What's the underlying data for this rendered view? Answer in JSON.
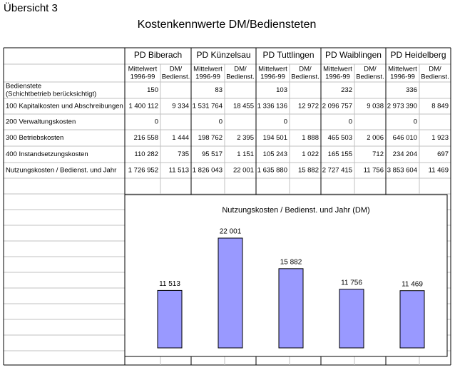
{
  "header": {
    "title": "Übersicht 3",
    "subtitle": "Kostenkennwerte DM/Bediensteten"
  },
  "table": {
    "columns": [
      "PD Biberach",
      "PD Künzelsau",
      "PD Tuttlingen",
      "PD Waiblingen",
      "PD Heidelberg"
    ],
    "subheaders": [
      [
        "Mittelwert",
        "1996-99"
      ],
      [
        "DM/",
        "Bedienst."
      ]
    ],
    "rows": [
      {
        "label": [
          "Bedienstete",
          "(Schichtbetrieb berücksichtigt)"
        ],
        "cells": [
          "150",
          null,
          "83",
          null,
          "103",
          null,
          "232",
          null,
          "336",
          null
        ]
      },
      {
        "label": [
          "100  Kapitalkosten und Abschreibungen"
        ],
        "cells": [
          "1 400 112",
          "9 334",
          "1 531 764",
          "18 455",
          "1 336 136",
          "12 972",
          "2 096 757",
          "9 038",
          "2 973 390",
          "8 849"
        ]
      },
      {
        "label": [
          "200  Verwaltungskosten"
        ],
        "cells": [
          "0",
          null,
          "0",
          null,
          "0",
          null,
          "0",
          null,
          "0",
          null
        ]
      },
      {
        "label": [
          "300  Betriebskosten"
        ],
        "cells": [
          "216 558",
          "1 444",
          "198 762",
          "2 395",
          "194 501",
          "1 888",
          "465 503",
          "2 006",
          "646 010",
          "1 923"
        ]
      },
      {
        "label": [
          "400  Instandsetzungskosten"
        ],
        "cells": [
          "110 282",
          "735",
          "95 517",
          "1 151",
          "105 243",
          "1 022",
          "165 155",
          "712",
          "234 204",
          "697"
        ]
      },
      {
        "label": [
          "Nutzungskosten / Bedienst. und Jahr"
        ],
        "cells": [
          "1 726 952",
          "11 513",
          "1 826 043",
          "22 001",
          "1 635 880",
          "15 882",
          "2 727 415",
          "11 756",
          "3 853 604",
          "11 469"
        ]
      }
    ]
  },
  "chart_data": {
    "type": "bar",
    "title": "Nutzungskosten / Bedienst. und Jahr (DM)",
    "categories": [
      null,
      null,
      null,
      null,
      null
    ],
    "values": [
      11513,
      22001,
      15882,
      11756,
      11469
    ],
    "value_labels": [
      "11 513",
      "22 001",
      "15 882",
      "11 756",
      "11 469"
    ],
    "color": "#9999ff",
    "ylim": [
      0,
      25000
    ]
  }
}
